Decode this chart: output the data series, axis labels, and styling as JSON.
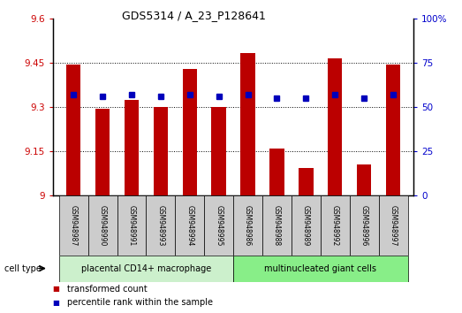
{
  "title": "GDS5314 / A_23_P128641",
  "samples": [
    "GSM948987",
    "GSM948990",
    "GSM948991",
    "GSM948993",
    "GSM948994",
    "GSM948995",
    "GSM948986",
    "GSM948988",
    "GSM948989",
    "GSM948992",
    "GSM948996",
    "GSM948997"
  ],
  "transformed_count": [
    9.445,
    9.295,
    9.325,
    9.3,
    9.43,
    9.3,
    9.485,
    9.16,
    9.095,
    9.465,
    9.105,
    9.445
  ],
  "percentile_rank": [
    57,
    56,
    57,
    56,
    57,
    56,
    57,
    55,
    55,
    57,
    55,
    57
  ],
  "group1_label": "placental CD14+ macrophage",
  "group2_label": "multinucleated giant cells",
  "group1_count": 6,
  "group2_count": 6,
  "ylim_left": [
    9.0,
    9.6
  ],
  "ylim_right": [
    0,
    100
  ],
  "yticks_left": [
    9.0,
    9.15,
    9.3,
    9.45,
    9.6
  ],
  "yticks_right": [
    0,
    25,
    50,
    75,
    100
  ],
  "ytick_labels_left": [
    "9",
    "9.15",
    "9.3",
    "9.45",
    "9.6"
  ],
  "ytick_labels_right": [
    "0",
    "25",
    "50",
    "75",
    "100%"
  ],
  "bar_color": "#bb0000",
  "dot_color": "#0000bb",
  "group1_bg": "#ccf0cc",
  "group2_bg": "#88ee88",
  "sample_bg": "#cccccc",
  "cell_type_label": "cell type",
  "legend_tc": "transformed count",
  "legend_pr": "percentile rank within the sample",
  "grid_color": "#000000",
  "bar_width": 0.5,
  "fig_width": 5.23,
  "fig_height": 3.54
}
